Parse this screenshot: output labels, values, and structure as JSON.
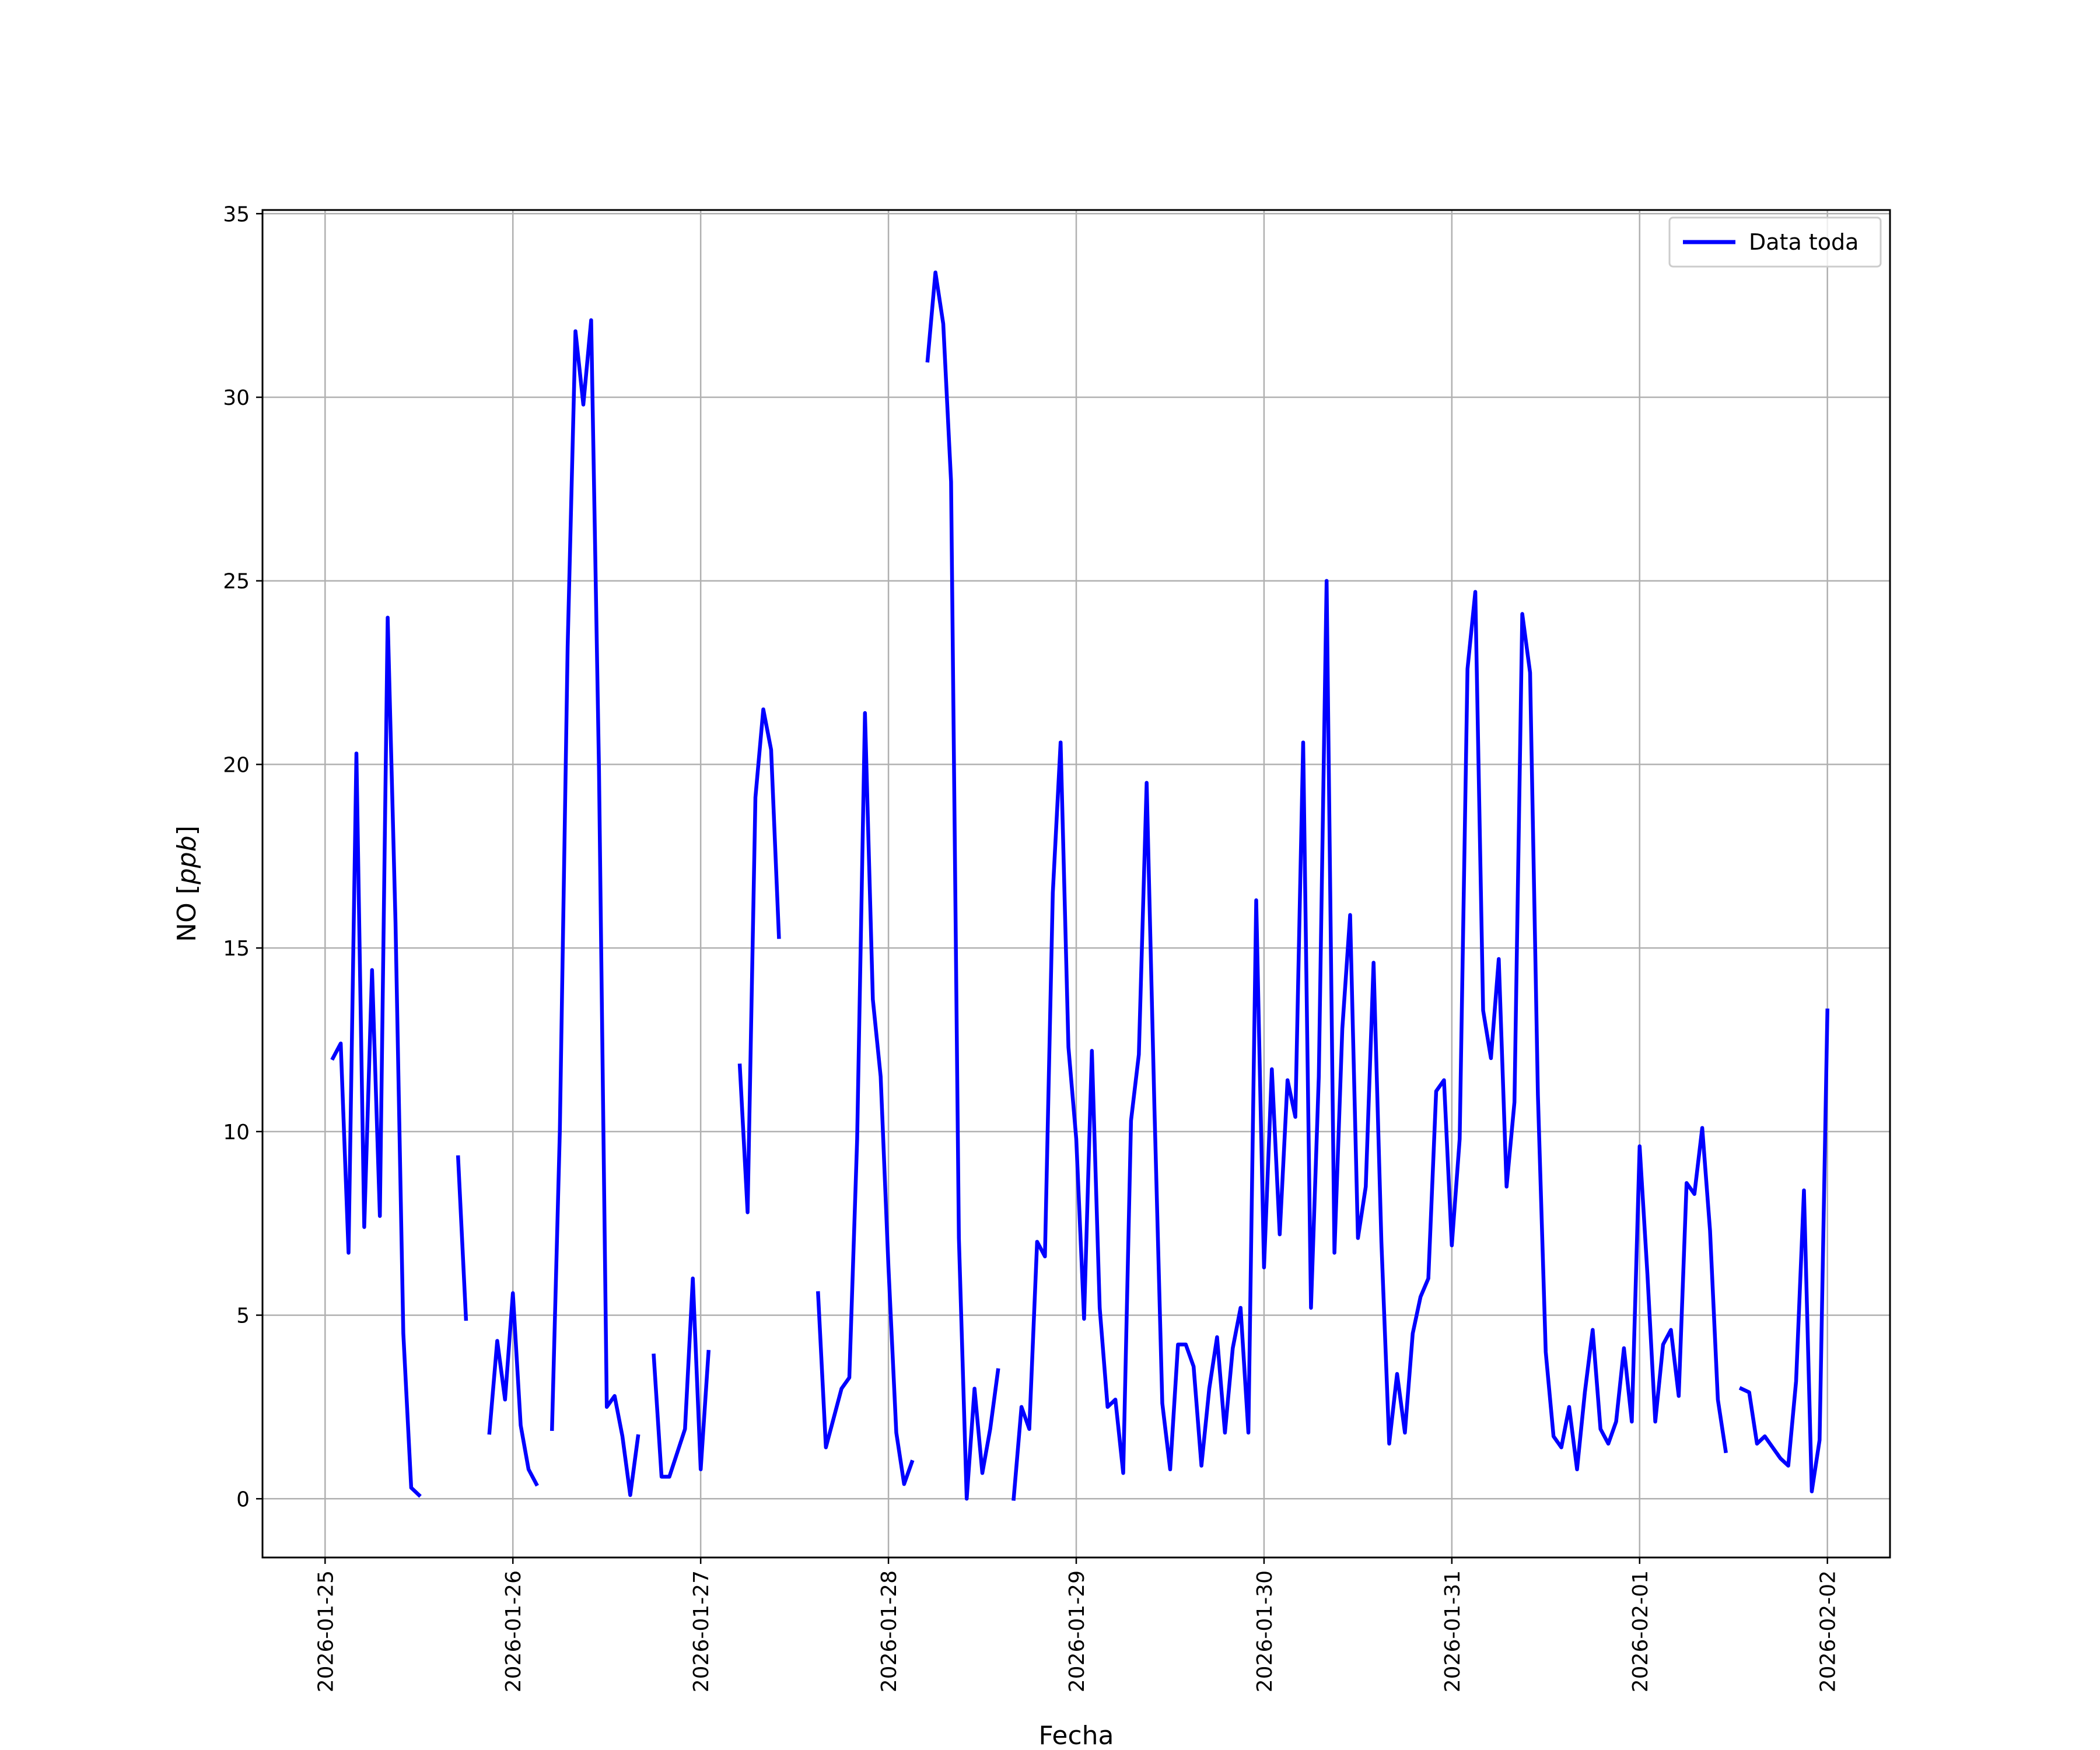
{
  "chart_data": {
    "type": "line",
    "title": "",
    "xlabel": "Fecha",
    "ylabel_prefix": "NO [",
    "ylabel_unit": "ppb",
    "ylabel_suffix": "]",
    "x_tick_labels": [
      "2026-01-25",
      "2026-01-26",
      "2026-01-27",
      "2026-01-28",
      "2026-01-29",
      "2026-01-30",
      "2026-01-31",
      "2026-02-01",
      "2026-02-02"
    ],
    "y_tick_labels": [
      "0",
      "5",
      "10",
      "15",
      "20",
      "25",
      "30",
      "35"
    ],
    "xlim": [
      "2026-01-24 16:00",
      "2026-02-02 08:00"
    ],
    "ylim": [
      -1.6,
      35.1
    ],
    "grid": true,
    "legend_position": "top-right",
    "colors": {
      "line": "#0000ff",
      "grid": "#b0b0b0",
      "axes": "#000000",
      "legend_border": "#cccccc"
    },
    "series": [
      {
        "name": "Data toda",
        "segments": [
          [
            [
              "2026-01-25 01:00",
              12.0
            ],
            [
              "2026-01-25 02:00",
              12.4
            ],
            [
              "2026-01-25 03:00",
              6.7
            ],
            [
              "2026-01-25 04:00",
              20.3
            ],
            [
              "2026-01-25 05:00",
              7.4
            ],
            [
              "2026-01-25 06:00",
              14.4
            ],
            [
              "2026-01-25 07:00",
              7.7
            ],
            [
              "2026-01-25 08:00",
              24.0
            ],
            [
              "2026-01-25 09:00",
              15.7
            ],
            [
              "2026-01-25 10:00",
              4.5
            ],
            [
              "2026-01-25 11:00",
              0.3
            ],
            [
              "2026-01-25 12:00",
              0.1
            ]
          ],
          [
            [
              "2026-01-25 17:00",
              9.3
            ],
            [
              "2026-01-25 18:00",
              4.9
            ]
          ],
          [
            [
              "2026-01-25 21:00",
              1.8
            ],
            [
              "2026-01-25 22:00",
              4.3
            ],
            [
              "2026-01-25 23:00",
              2.7
            ],
            [
              "2026-01-26 00:00",
              5.6
            ],
            [
              "2026-01-26 01:00",
              2.0
            ],
            [
              "2026-01-26 02:00",
              0.8
            ],
            [
              "2026-01-26 03:00",
              0.4
            ]
          ],
          [
            [
              "2026-01-26 05:00",
              1.9
            ],
            [
              "2026-01-26 06:00",
              10.0
            ],
            [
              "2026-01-26 07:00",
              23.2
            ],
            [
              "2026-01-26 08:00",
              31.8
            ],
            [
              "2026-01-26 09:00",
              29.8
            ],
            [
              "2026-01-26 10:00",
              32.1
            ],
            [
              "2026-01-26 11:00",
              19.9
            ],
            [
              "2026-01-26 12:00",
              2.5
            ],
            [
              "2026-01-26 13:00",
              2.8
            ],
            [
              "2026-01-26 14:00",
              1.7
            ],
            [
              "2026-01-26 15:00",
              0.1
            ],
            [
              "2026-01-26 16:00",
              1.7
            ]
          ],
          [
            [
              "2026-01-26 18:00",
              3.9
            ],
            [
              "2026-01-26 19:00",
              0.6
            ],
            [
              "2026-01-26 20:00",
              0.6
            ],
            [
              "2026-01-26 22:00",
              1.9
            ],
            [
              "2026-01-26 23:00",
              6.0
            ],
            [
              "2026-01-27 00:00",
              0.8
            ],
            [
              "2026-01-27 01:00",
              4.0
            ]
          ],
          [
            [
              "2026-01-27 05:00",
              11.8
            ],
            [
              "2026-01-27 06:00",
              7.8
            ],
            [
              "2026-01-27 07:00",
              19.1
            ],
            [
              "2026-01-27 08:00",
              21.5
            ],
            [
              "2026-01-27 09:00",
              20.4
            ],
            [
              "2026-01-27 10:00",
              15.3
            ]
          ],
          [
            [
              "2026-01-27 15:00",
              5.6
            ],
            [
              "2026-01-27 16:00",
              1.4
            ],
            [
              "2026-01-27 18:00",
              3.0
            ],
            [
              "2026-01-27 19:00",
              3.3
            ],
            [
              "2026-01-27 20:00",
              9.8
            ],
            [
              "2026-01-27 21:00",
              21.4
            ],
            [
              "2026-01-27 22:00",
              13.6
            ],
            [
              "2026-01-27 23:00",
              11.5
            ],
            [
              "2026-01-28 00:00",
              6.3
            ],
            [
              "2026-01-28 01:00",
              1.8
            ],
            [
              "2026-01-28 02:00",
              0.4
            ],
            [
              "2026-01-28 03:00",
              1.0
            ]
          ],
          [
            [
              "2026-01-28 05:00",
              31.0
            ],
            [
              "2026-01-28 06:00",
              33.4
            ],
            [
              "2026-01-28 07:00",
              32.0
            ],
            [
              "2026-01-28 08:00",
              27.7
            ],
            [
              "2026-01-28 09:00",
              7.1
            ],
            [
              "2026-01-28 10:00",
              0.0
            ],
            [
              "2026-01-28 11:00",
              3.0
            ],
            [
              "2026-01-28 12:00",
              0.7
            ],
            [
              "2026-01-28 13:00",
              1.9
            ],
            [
              "2026-01-28 14:00",
              3.5
            ]
          ],
          [
            [
              "2026-01-28 16:00",
              0.0
            ],
            [
              "2026-01-28 17:00",
              2.5
            ],
            [
              "2026-01-28 18:00",
              1.9
            ],
            [
              "2026-01-28 19:00",
              7.0
            ],
            [
              "2026-01-28 20:00",
              6.6
            ],
            [
              "2026-01-28 21:00",
              16.5
            ],
            [
              "2026-01-28 22:00",
              20.6
            ],
            [
              "2026-01-28 23:00",
              12.3
            ],
            [
              "2026-01-29 00:00",
              9.8
            ],
            [
              "2026-01-29 01:00",
              4.9
            ],
            [
              "2026-01-29 02:00",
              12.2
            ],
            [
              "2026-01-29 03:00",
              5.2
            ],
            [
              "2026-01-29 04:00",
              2.5
            ],
            [
              "2026-01-29 05:00",
              2.7
            ],
            [
              "2026-01-29 06:00",
              0.7
            ],
            [
              "2026-01-29 07:00",
              10.3
            ],
            [
              "2026-01-29 08:00",
              12.1
            ],
            [
              "2026-01-29 09:00",
              19.5
            ],
            [
              "2026-01-29 10:00",
              10.6
            ],
            [
              "2026-01-29 11:00",
              2.6
            ],
            [
              "2026-01-29 12:00",
              0.8
            ],
            [
              "2026-01-29 13:00",
              4.2
            ],
            [
              "2026-01-29 14:00",
              4.2
            ],
            [
              "2026-01-29 15:00",
              3.6
            ],
            [
              "2026-01-29 16:00",
              0.9
            ],
            [
              "2026-01-29 17:00",
              3.0
            ],
            [
              "2026-01-29 18:00",
              4.4
            ],
            [
              "2026-01-29 19:00",
              1.8
            ],
            [
              "2026-01-29 20:00",
              4.1
            ],
            [
              "2026-01-29 21:00",
              5.2
            ],
            [
              "2026-01-29 22:00",
              1.8
            ],
            [
              "2026-01-29 23:00",
              16.3
            ],
            [
              "2026-01-30 00:00",
              6.3
            ],
            [
              "2026-01-30 01:00",
              11.7
            ],
            [
              "2026-01-30 02:00",
              7.2
            ],
            [
              "2026-01-30 03:00",
              11.4
            ],
            [
              "2026-01-30 04:00",
              10.4
            ],
            [
              "2026-01-30 05:00",
              20.6
            ],
            [
              "2026-01-30 06:00",
              5.2
            ],
            [
              "2026-01-30 07:00",
              11.5
            ],
            [
              "2026-01-30 08:00",
              25.0
            ],
            [
              "2026-01-30 09:00",
              6.7
            ],
            [
              "2026-01-30 10:00",
              12.8
            ],
            [
              "2026-01-30 11:00",
              15.9
            ],
            [
              "2026-01-30 12:00",
              7.1
            ],
            [
              "2026-01-30 13:00",
              8.5
            ],
            [
              "2026-01-30 14:00",
              14.6
            ],
            [
              "2026-01-30 15:00",
              7.0
            ],
            [
              "2026-01-30 16:00",
              1.5
            ],
            [
              "2026-01-30 17:00",
              3.4
            ],
            [
              "2026-01-30 18:00",
              1.8
            ],
            [
              "2026-01-30 19:00",
              4.5
            ],
            [
              "2026-01-30 20:00",
              5.5
            ],
            [
              "2026-01-30 21:00",
              6.0
            ],
            [
              "2026-01-30 22:00",
              11.1
            ],
            [
              "2026-01-30 23:00",
              11.4
            ],
            [
              "2026-01-31 00:00",
              6.9
            ],
            [
              "2026-01-31 01:00",
              9.8
            ],
            [
              "2026-01-31 02:00",
              22.6
            ],
            [
              "2026-01-31 03:00",
              24.7
            ],
            [
              "2026-01-31 04:00",
              13.3
            ],
            [
              "2026-01-31 05:00",
              12.0
            ],
            [
              "2026-01-31 06:00",
              14.7
            ],
            [
              "2026-01-31 07:00",
              8.5
            ],
            [
              "2026-01-31 08:00",
              10.8
            ],
            [
              "2026-01-31 09:00",
              24.1
            ],
            [
              "2026-01-31 10:00",
              22.5
            ],
            [
              "2026-01-31 11:00",
              11.0
            ],
            [
              "2026-01-31 12:00",
              4.0
            ],
            [
              "2026-01-31 13:00",
              1.7
            ],
            [
              "2026-01-31 14:00",
              1.4
            ],
            [
              "2026-01-31 15:00",
              2.5
            ],
            [
              "2026-01-31 16:00",
              0.8
            ],
            [
              "2026-01-31 17:00",
              2.9
            ],
            [
              "2026-01-31 18:00",
              4.6
            ],
            [
              "2026-01-31 19:00",
              1.9
            ],
            [
              "2026-01-31 20:00",
              1.5
            ],
            [
              "2026-01-31 21:00",
              2.1
            ],
            [
              "2026-01-31 22:00",
              4.1
            ],
            [
              "2026-01-31 23:00",
              2.1
            ],
            [
              "2026-02-01 00:00",
              9.6
            ],
            [
              "2026-02-01 01:00",
              6.1
            ],
            [
              "2026-02-01 02:00",
              2.1
            ],
            [
              "2026-02-01 03:00",
              4.2
            ],
            [
              "2026-02-01 04:00",
              4.6
            ],
            [
              "2026-02-01 05:00",
              2.8
            ],
            [
              "2026-02-01 06:00",
              8.6
            ],
            [
              "2026-02-01 07:00",
              8.3
            ],
            [
              "2026-02-01 08:00",
              10.1
            ],
            [
              "2026-02-01 09:00",
              7.3
            ],
            [
              "2026-02-01 10:00",
              2.7
            ],
            [
              "2026-02-01 11:00",
              1.3
            ]
          ],
          [
            [
              "2026-02-01 13:00",
              3.0
            ],
            [
              "2026-02-01 14:00",
              2.9
            ],
            [
              "2026-02-01 15:00",
              1.5
            ],
            [
              "2026-02-01 16:00",
              1.7
            ],
            [
              "2026-02-01 17:00",
              1.4
            ],
            [
              "2026-02-01 18:00",
              1.1
            ],
            [
              "2026-02-01 19:00",
              0.9
            ],
            [
              "2026-02-01 20:00",
              3.2
            ],
            [
              "2026-02-01 21:00",
              8.4
            ],
            [
              "2026-02-01 22:00",
              0.2
            ],
            [
              "2026-02-01 23:00",
              1.6
            ],
            [
              "2026-02-02 00:00",
              13.3
            ]
          ]
        ]
      }
    ]
  }
}
